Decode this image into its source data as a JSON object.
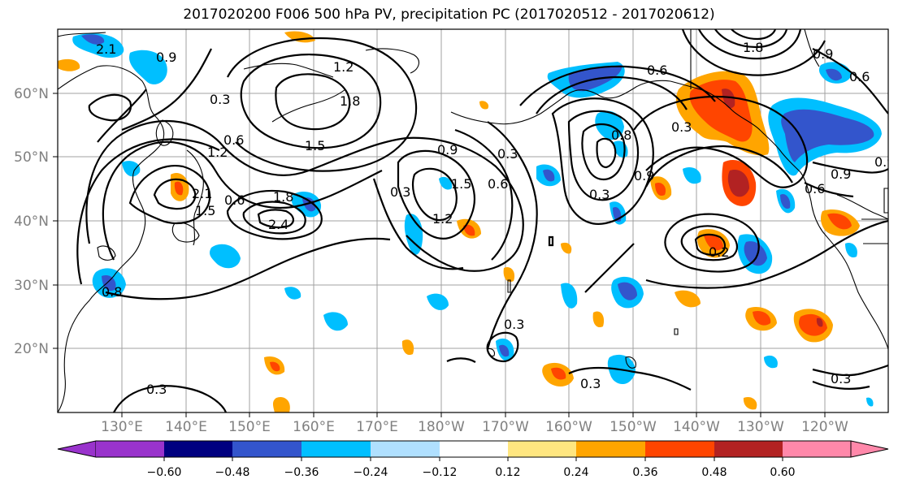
{
  "title": "2017020200 F006 500 hPa PV, precipitation PC (2017020512 - 2017020612)",
  "map": {
    "lat_labels": [
      "60°N",
      "50°N",
      "40°N",
      "30°N",
      "20°N"
    ],
    "lon_labels": [
      "130°E",
      "140°E",
      "150°E",
      "160°E",
      "170°E",
      "180°W",
      "170°W",
      "160°W",
      "150°W",
      "140°W",
      "130°W",
      "120°W"
    ],
    "contour_labels": [
      "2.1",
      "1.2",
      "1.8",
      "0.6",
      "0.3",
      "0.9",
      "1.5",
      "1.2",
      "1.5",
      "2.1",
      "2.4",
      "1.8",
      "0.9",
      "1.5",
      "0.6",
      "0.3",
      "1.2",
      "0.3",
      "0.6",
      "0.8",
      "0.3",
      "0.9",
      "0.6",
      "0.3",
      "0.9",
      "0.6",
      "0.3",
      "0.2",
      "0.3",
      "0.3",
      "0.3",
      "0.8",
      "0.9",
      "1.8",
      "0.9",
      "0.6"
    ]
  },
  "colorbar": {
    "colors": [
      "#9933cc",
      "#000080",
      "#3355cc",
      "#00bfff",
      "#b0e0ff",
      "#ffffff",
      "#ffe680",
      "#ffa500",
      "#ff4500",
      "#b22222",
      "#ff88aa"
    ],
    "tick_labels": [
      "−0.60",
      "−0.48",
      "−0.36",
      "−0.24",
      "−0.12",
      "0.12",
      "0.24",
      "0.36",
      "0.48",
      "0.60"
    ]
  }
}
